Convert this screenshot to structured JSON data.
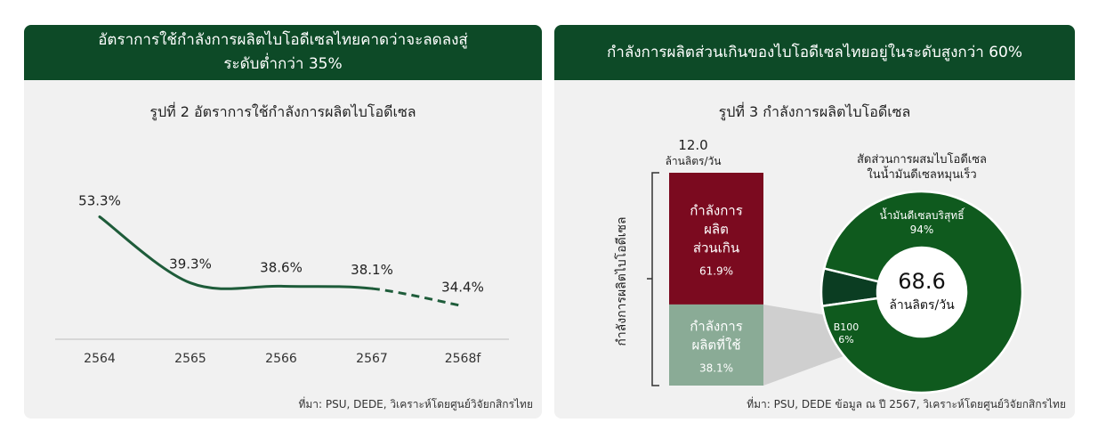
{
  "left_panel": {
    "header_line1": "อัตราการใช้กำลังการผลิตไบโอดีเซลไทยคาดว่าจะลดลงสู่",
    "header_line2": "ระดับต่ำกว่า 35%",
    "chart_title": "รูปที่ 2 อัตราการใช้กำลังการผลิตไบโอดีเซล",
    "source": "ที่มา: PSU, DEDE, วิเคราะห์โดยศูนย์วิจัยกสิกรไทย"
  },
  "right_panel": {
    "header": "กำลังการผลิตส่วนเกินของไบโอดีเซลไทยอยู่ในระดับสูงกว่า 60%",
    "chart_title": "รูปที่ 3 กำลังการผลิตไบโอดีเซล",
    "source": "ที่มา: PSU, DEDE ข้อมูล ณ ปี 2567, วิเคราะห์โดยศูนย์วิจัยกสิกรไทย"
  },
  "chart_data": [
    {
      "type": "line",
      "title": "รูปที่ 2 อัตราการใช้กำลังการผลิตไบโอดีเซล",
      "categories": [
        "2564",
        "2565",
        "2566",
        "2567",
        "2568f"
      ],
      "values": [
        53.3,
        39.3,
        38.6,
        38.1,
        34.4
      ],
      "data_labels": [
        "53.3%",
        "39.3%",
        "38.6%",
        "38.1%",
        "34.4%"
      ],
      "forecast_from_index": 3,
      "line_color": "#1e5c3a",
      "ylim": [
        20,
        60
      ],
      "grid": false
    },
    {
      "type": "bar",
      "subtype": "stacked",
      "total_value": "12.0",
      "total_unit": "ล้านลิตร/วัน",
      "axis_label": "กำลังการผลิตไบโอดีเซล",
      "segments": [
        {
          "label_lines": [
            "กำลังการ",
            "ผลิต",
            "ส่วนเกิน"
          ],
          "value": 61.9,
          "value_label": "61.9%",
          "color": "#7b0a1f"
        },
        {
          "label_lines": [
            "กำลังการ",
            "ผลิตที่ใช้"
          ],
          "value": 38.1,
          "value_label": "38.1%",
          "color": "#8aab96"
        }
      ]
    },
    {
      "type": "pie",
      "subtype": "donut",
      "title_lines": [
        "สัดส่วนการผสมไบโอดีเซล",
        "ในน้ำมันดีเซลหมุนเร็ว"
      ],
      "center_value": "68.6",
      "center_unit": "ล้านลิตร/วัน",
      "slices": [
        {
          "label": "น้ำมันดีเซลบริสุทธิ์",
          "value": 94,
          "value_label": "94%",
          "color": "#0f5a1e"
        },
        {
          "label": "B100",
          "value": 6,
          "value_label": "6%",
          "color": "#0b3d22"
        }
      ]
    }
  ]
}
